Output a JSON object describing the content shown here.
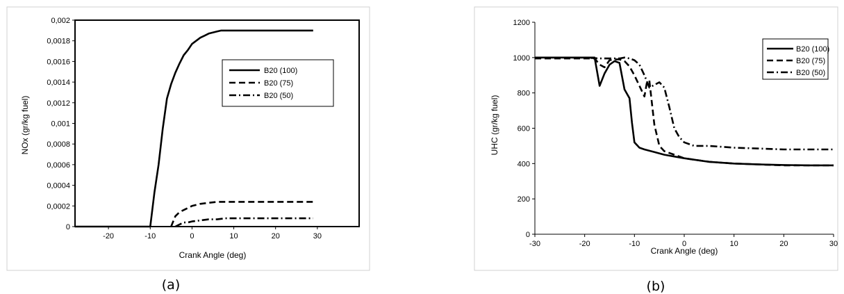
{
  "chart_data": [
    {
      "type": "line",
      "panel_label": "(a)",
      "xlabel": "Crank Angle (deg)",
      "ylabel": "NOx (gr/kg fuel)",
      "xlim": [
        -28,
        40
      ],
      "ylim": [
        0,
        0.002
      ],
      "x_ticks": [
        -20,
        -10,
        0,
        10,
        20,
        30
      ],
      "y_ticks": [
        "0",
        "0,0002",
        "0,0004",
        "0,0006",
        "0,0008",
        "0,001",
        "0,0012",
        "0,0014",
        "0,0016",
        "0,0018",
        "0,002"
      ],
      "grid": false,
      "legend_position": "right",
      "series": [
        {
          "name": "B20 (100)",
          "style": "solid",
          "x": [
            -28,
            -10,
            -9,
            -8,
            -7,
            -6,
            -5,
            -4,
            -3,
            -2,
            -1,
            0,
            1,
            2,
            3,
            4,
            5,
            6,
            7,
            8,
            10,
            15,
            20,
            25,
            29
          ],
          "y": [
            0,
            0,
            0.00033,
            0.0006,
            0.00095,
            0.00124,
            0.00138,
            0.00149,
            0.00158,
            0.00166,
            0.00171,
            0.00177,
            0.0018,
            0.00183,
            0.00185,
            0.00187,
            0.00188,
            0.00189,
            0.0019,
            0.0019,
            0.0019,
            0.0019,
            0.0019,
            0.0019,
            0.0019
          ]
        },
        {
          "name": "B20 (75)",
          "style": "dash",
          "x": [
            -5,
            -4,
            -3,
            -2,
            -1,
            0,
            2,
            4,
            6,
            8,
            10,
            15,
            20,
            25,
            29
          ],
          "y": [
            0,
            0.0001,
            0.00014,
            0.00016,
            0.00018,
            0.0002,
            0.00022,
            0.00023,
            0.00024,
            0.00024,
            0.00024,
            0.00024,
            0.00024,
            0.00024,
            0.00024
          ]
        },
        {
          "name": "B20 (50)",
          "style": "dashdot",
          "x": [
            -4,
            -3,
            -2,
            -1,
            0,
            2,
            4,
            6,
            8,
            10,
            15,
            20,
            25,
            29
          ],
          "y": [
            0,
            2e-05,
            4e-05,
            4e-05,
            5e-05,
            6e-05,
            7e-05,
            7e-05,
            8e-05,
            8e-05,
            8e-05,
            8e-05,
            8e-05,
            8e-05
          ]
        }
      ]
    },
    {
      "type": "line",
      "panel_label": "(b)",
      "xlabel": "Crank Angle (deg)",
      "ylabel": "UHC (gr/kg fuel)",
      "xlim": [
        -30,
        30
      ],
      "ylim": [
        0,
        1200
      ],
      "x_ticks": [
        -30,
        -20,
        -10,
        0,
        10,
        20,
        30
      ],
      "y_ticks": [
        "0",
        "200",
        "400",
        "600",
        "800",
        "1000",
        "1200"
      ],
      "grid": false,
      "legend_position": "top-right",
      "series": [
        {
          "name": "B20 (100)",
          "style": "solid",
          "x": [
            -30,
            -20,
            -18,
            -17,
            -16,
            -15,
            -14,
            -13,
            -12,
            -11,
            -10.5,
            -10,
            -9,
            -8,
            -6,
            -4,
            -2,
            0,
            5,
            10,
            15,
            20,
            25,
            30
          ],
          "y": [
            1000,
            1000,
            1000,
            840,
            910,
            960,
            980,
            970,
            820,
            770,
            630,
            520,
            490,
            480,
            465,
            450,
            440,
            430,
            410,
            400,
            395,
            392,
            390,
            390
          ]
        },
        {
          "name": "B20 (75)",
          "style": "dash",
          "x": [
            -30,
            -20,
            -18,
            -17,
            -16,
            -15,
            -14,
            -13,
            -12,
            -11,
            -10,
            -9,
            -8,
            -7.5,
            -7,
            -6,
            -5,
            -4,
            -2,
            0,
            5,
            10,
            15,
            20,
            25,
            30
          ],
          "y": [
            995,
            995,
            995,
            960,
            945,
            985,
            990,
            990,
            980,
            950,
            900,
            840,
            780,
            860,
            870,
            620,
            500,
            470,
            450,
            430,
            410,
            400,
            395,
            390,
            390,
            390
          ]
        },
        {
          "name": "B20 (50)",
          "style": "dashdot",
          "x": [
            -30,
            -20,
            -17,
            -15,
            -14,
            -13,
            -12,
            -11,
            -10,
            -9,
            -8,
            -7,
            -6,
            -5,
            -4,
            -3,
            -2,
            -1,
            0,
            2,
            5,
            10,
            15,
            20,
            25,
            30
          ],
          "y": [
            1000,
            1000,
            995,
            995,
            995,
            995,
            1000,
            995,
            985,
            960,
            900,
            830,
            845,
            860,
            830,
            720,
            600,
            550,
            520,
            500,
            500,
            490,
            485,
            480,
            480,
            480
          ]
        }
      ]
    }
  ]
}
